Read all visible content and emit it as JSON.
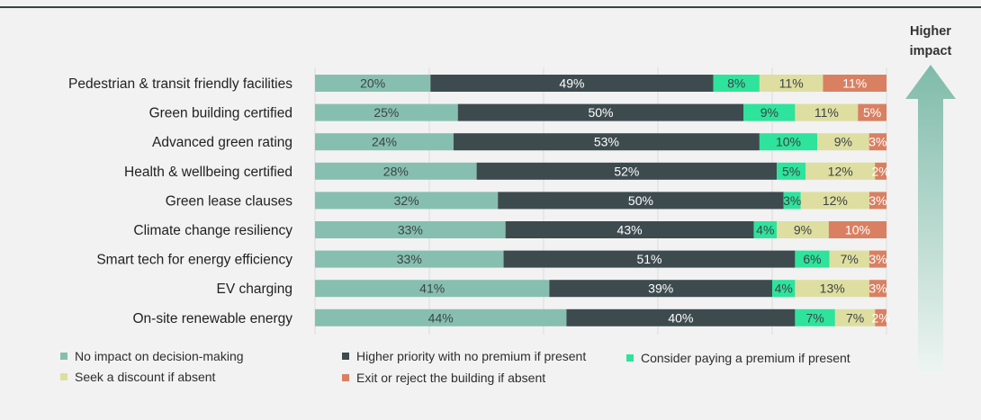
{
  "chart_data": {
    "type": "bar",
    "orientation": "horizontal",
    "stacked": true,
    "xlim": [
      0,
      100
    ],
    "units": "%",
    "grid": true,
    "categories": [
      "Pedestrian & transit friendly facilities",
      "Green building certified",
      "Advanced green rating",
      "Health & wellbeing certified",
      "Green lease clauses",
      "Climate change resiliency",
      "Smart tech for energy efficiency",
      "EV charging",
      "On-site renewable energy"
    ],
    "series": [
      {
        "name": "No impact on decision-making",
        "color": "#86bfb0",
        "label_color": "#3c4346",
        "values": [
          20,
          25,
          24,
          28,
          32,
          33,
          33,
          41,
          44
        ]
      },
      {
        "name": "Higher priority with no premium if present",
        "color": "#3d4b4f",
        "label_color": "#ffffff",
        "values": [
          49,
          50,
          53,
          52,
          50,
          43,
          51,
          39,
          40
        ]
      },
      {
        "name": "Consider paying a premium if present",
        "color": "#2ee39b",
        "label_color": "#3c4346",
        "values": [
          8,
          9,
          10,
          5,
          3,
          4,
          6,
          4,
          7
        ]
      },
      {
        "name": "Seek a discount if absent",
        "color": "#dedea0",
        "label_color": "#3c4346",
        "values": [
          11,
          11,
          9,
          12,
          12,
          9,
          7,
          13,
          7
        ]
      },
      {
        "name": "Exit or reject the building if absent",
        "color": "#d98062",
        "label_color": "#ffffff",
        "values": [
          11,
          5,
          3,
          2,
          3,
          10,
          3,
          3,
          2
        ]
      }
    ],
    "legend_order": [
      0,
      1,
      2,
      3,
      4
    ],
    "legend_position": "bottom",
    "annotation": {
      "line1": "Higher",
      "line2": "impact",
      "arrow_direction": "up"
    }
  }
}
